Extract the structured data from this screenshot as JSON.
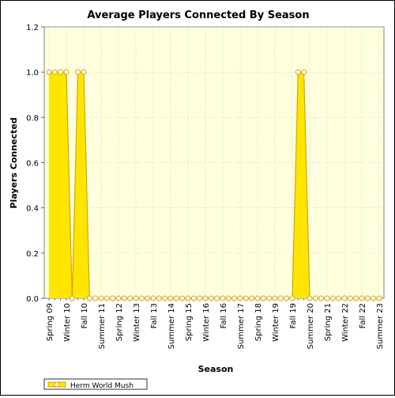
{
  "chart_data": {
    "type": "area",
    "title": "Average Players Connected By Season",
    "xlabel": "Season",
    "ylabel": "Players Connected",
    "ylim": [
      0,
      1.2
    ],
    "yticks": [
      "0.0",
      "0.2",
      "0.4",
      "0.6",
      "0.8",
      "1.0",
      "1.2"
    ],
    "x": [
      "Spring 09",
      "Summer 09",
      "Fall 09",
      "Winter 10",
      "Spring 10",
      "Summer 10",
      "Fall 10",
      "Winter 11",
      "Spring 11",
      "Summer 11",
      "Fall 11",
      "Winter 12",
      "Spring 12",
      "Summer 12",
      "Fall 12",
      "Winter 13",
      "Spring 13",
      "Summer 13",
      "Fall 13",
      "Winter 14",
      "Spring 14",
      "Summer 14",
      "Fall 14",
      "Winter 15",
      "Spring 15",
      "Summer 15",
      "Fall 15",
      "Winter 16",
      "Spring 16",
      "Summer 16",
      "Fall 16",
      "Winter 17",
      "Spring 17",
      "Summer 17",
      "Fall 17",
      "Winter 18",
      "Spring 18",
      "Summer 18",
      "Fall 18",
      "Winter 19",
      "Spring 19",
      "Summer 19",
      "Fall 19",
      "Winter 20",
      "Spring 20",
      "Summer 20",
      "Fall 20",
      "Winter 21",
      "Spring 21",
      "Summer 21",
      "Fall 21",
      "Winter 22",
      "Spring 22",
      "Summer 22",
      "Fall 22",
      "Winter 23",
      "Spring 23",
      "Summer 23"
    ],
    "xtick_labels": [
      "Spring 09",
      "Winter 10",
      "Fall 10",
      "Summer 11",
      "Spring 12",
      "Winter 13",
      "Fall 13",
      "Summer 14",
      "Spring 15",
      "Winter 16",
      "Fall 16",
      "Summer 17",
      "Spring 18",
      "Winter 19",
      "Fall 19",
      "Summer 20",
      "Spring 21",
      "Winter 22",
      "Fall 22",
      "Summer 23"
    ],
    "series": [
      {
        "name": "Herm World Mush",
        "values": [
          1,
          1,
          1,
          1,
          0,
          1,
          1,
          0,
          0,
          0,
          0,
          0,
          0,
          0,
          0,
          0,
          0,
          0,
          0,
          0,
          0,
          0,
          0,
          0,
          0,
          0,
          0,
          0,
          0,
          0,
          0,
          0,
          0,
          0,
          0,
          0,
          0,
          0,
          0,
          0,
          0,
          0,
          0,
          1,
          1,
          0,
          0,
          0,
          0,
          0,
          0,
          0,
          0,
          0,
          0,
          0,
          0,
          0
        ]
      }
    ],
    "grid": true,
    "legend": "bottom-left",
    "colors": {
      "fill": "#ffe500",
      "line": "#d4a600",
      "marker_fill": "#ffffff",
      "plot_bg": "#ffffe0"
    }
  }
}
